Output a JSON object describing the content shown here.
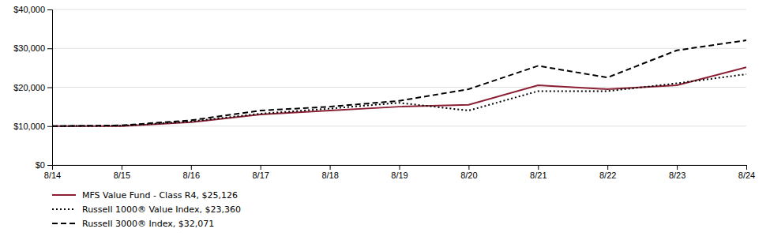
{
  "chart_data": {
    "type": "line",
    "categories": [
      "8/14",
      "8/15",
      "8/16",
      "8/17",
      "8/18",
      "8/19",
      "8/20",
      "8/21",
      "8/22",
      "8/23",
      "8/24"
    ],
    "series": [
      {
        "name": "MFS Value Fund - Class R4, $25,126",
        "color": "#8B2035",
        "line_style": "solid",
        "values": [
          10000,
          10000,
          11000,
          13000,
          14000,
          15000,
          15500,
          20500,
          19500,
          20500,
          25126
        ]
      },
      {
        "name": "Russell 1000® Value Index, $23,360",
        "color": "#000000",
        "line_style": "dotted",
        "values": [
          10000,
          10100,
          11200,
          13200,
          14500,
          16000,
          14000,
          19000,
          19000,
          21000,
          23360
        ]
      },
      {
        "name": "Russell 3000® Index, $32,071",
        "color": "#000000",
        "line_style": "dashed",
        "values": [
          10000,
          10200,
          11500,
          14000,
          15000,
          16500,
          19500,
          25500,
          22500,
          29500,
          32071
        ]
      }
    ],
    "ylim": [
      0,
      40000
    ],
    "yticks": [
      {
        "value": 0,
        "label": "$0"
      },
      {
        "value": 10000,
        "label": "$10,000"
      },
      {
        "value": 20000,
        "label": "$20,000"
      },
      {
        "value": 30000,
        "label": "$30,000"
      },
      {
        "value": 40000,
        "label": "$40,000"
      }
    ],
    "grid": true,
    "legend": "bottom"
  }
}
